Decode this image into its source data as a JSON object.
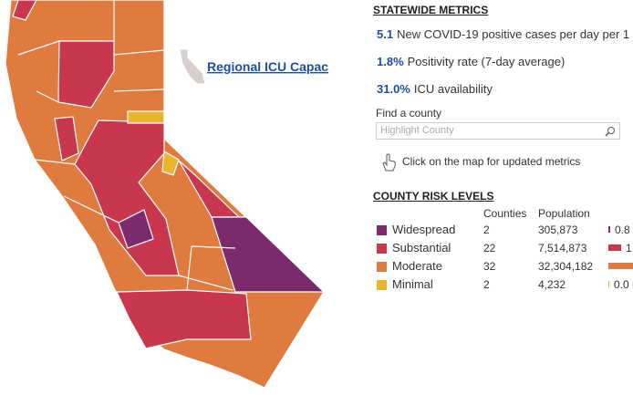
{
  "map": {
    "link": "Regional ICU Capacity"
  },
  "metrics": {
    "title": "STATEWIDE METRICS",
    "items": [
      {
        "value": "5.1",
        "label": "New COVID-19 positive cases per day per 1"
      },
      {
        "value": "1.8%",
        "label": "Positivity rate (7-day average)"
      },
      {
        "value": "31.0%",
        "label": "ICU availability"
      }
    ]
  },
  "search": {
    "label": "Find a county",
    "placeholder": "Highlight County"
  },
  "hint": "Click on the map for updated metrics",
  "risk": {
    "title": "COUNTY RISK LEVELS",
    "headers": [
      "Counties",
      "Population"
    ],
    "rows": [
      {
        "level": "Widespread",
        "color": "#7b2a6b",
        "counties": "2",
        "population": "305,873",
        "share": "0.8"
      },
      {
        "level": "Substantial",
        "color": "#c9374f",
        "counties": "22",
        "population": "7,514,873",
        "share": "1"
      },
      {
        "level": "Moderate",
        "color": "#e07b3f",
        "counties": "32",
        "population": "32,304,182"
      },
      {
        "level": "Minimal",
        "color": "#e8b52e",
        "counties": "2",
        "population": "4,232",
        "share": "0.0"
      }
    ]
  }
}
